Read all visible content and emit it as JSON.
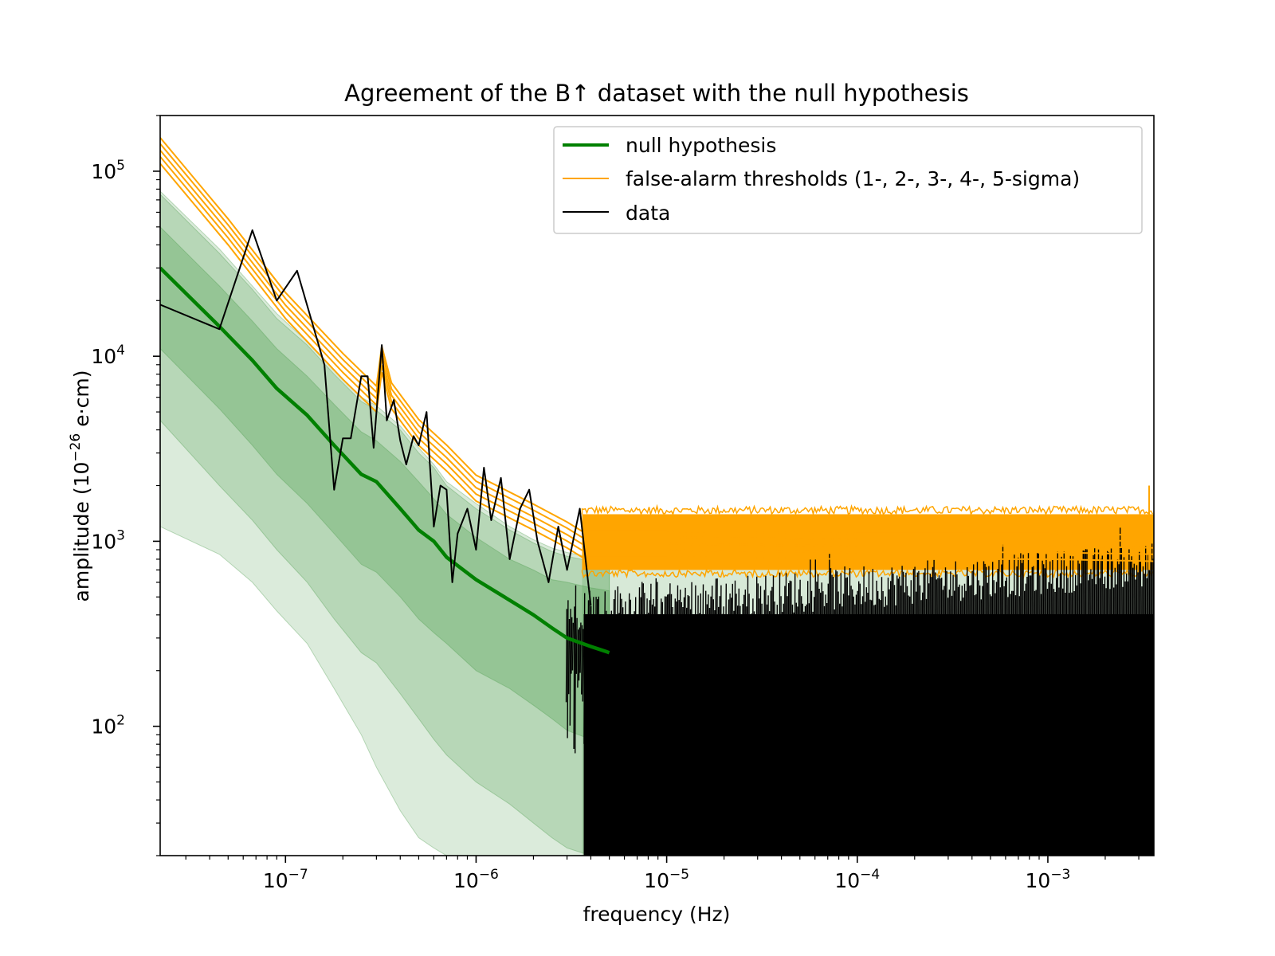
{
  "chart_data": {
    "type": "line",
    "title": "Agreement of the B↑ dataset with the null hypothesis",
    "xlabel": "frequency (Hz)",
    "ylabel": {
      "prefix": "amplitude (10",
      "exp": "−26",
      "suffix": "e·cm)"
    },
    "xscale": "log",
    "yscale": "log",
    "xlim": [
      2.2e-08,
      0.0036
    ],
    "ylim": [
      20,
      200000
    ],
    "grid": false,
    "legend_position": "top-right",
    "x_ticks": [
      {
        "value": 1e-07,
        "base": "10",
        "exp": "−7"
      },
      {
        "value": 1e-06,
        "base": "10",
        "exp": "−6"
      },
      {
        "value": 1e-05,
        "base": "10",
        "exp": "−5"
      },
      {
        "value": 0.0001,
        "base": "10",
        "exp": "−4"
      },
      {
        "value": 0.001,
        "base": "10",
        "exp": "−3"
      }
    ],
    "y_ticks": [
      {
        "value": 100,
        "base": "10",
        "exp": "2"
      },
      {
        "value": 1000,
        "base": "10",
        "exp": "3"
      },
      {
        "value": 10000,
        "base": "10",
        "exp": "4"
      },
      {
        "value": 100000,
        "base": "10",
        "exp": "5"
      }
    ],
    "legend": [
      {
        "label": "null hypothesis",
        "color": "#008000",
        "width": 4
      },
      {
        "label": "false-alarm thresholds (1-, 2-, 3-, 4-, 5-sigma)",
        "color": "#ffa500",
        "width": 2
      },
      {
        "label": "data",
        "color": "#000000",
        "width": 2
      }
    ],
    "series": [
      {
        "name": "null hypothesis",
        "color": "#008000",
        "x": [
          2.2e-08,
          4.5e-08,
          6.7e-08,
          9e-08,
          1.3e-07,
          1.8e-07,
          2.5e-07,
          3e-07,
          4e-07,
          5e-07,
          6e-07,
          7e-07,
          1e-06,
          1.5e-06,
          2e-06,
          2.5e-06,
          3e-06,
          4e-06,
          5e-06
        ],
        "y": [
          30000,
          14500,
          9500,
          6700,
          4800,
          3300,
          2300,
          2100,
          1500,
          1150,
          1000,
          820,
          620,
          480,
          400,
          340,
          300,
          270,
          250
        ]
      },
      {
        "name": "false-alarm thresholds (1-, 2-, 3-, 4-, 5-sigma)",
        "color": "#ffa500",
        "sigma_ratios": [
          1.0,
          1.09,
          1.18,
          1.28,
          1.38
        ],
        "x": [
          2.2e-08,
          5e-08,
          1e-07,
          2e-07,
          3e-07,
          3.2e-07,
          3.6e-07,
          5e-07,
          7e-07,
          1e-06,
          2e-06,
          3e-06,
          3.6e-06,
          1e-05,
          0.0001,
          0.001,
          0.0036
        ],
        "y": [
          110000,
          40000,
          16000,
          7500,
          5000,
          8200,
          5200,
          3300,
          2400,
          1650,
          1150,
          920,
          820,
          820,
          800,
          800,
          780
        ]
      },
      {
        "name": "data",
        "color": "#000000",
        "x": [
          2.2e-08,
          4.5e-08,
          6.7e-08,
          9e-08,
          1.15e-07,
          1.6e-07,
          1.8e-07,
          2e-07,
          2.2e-07,
          2.5e-07,
          2.7e-07,
          2.9e-07,
          3.2e-07,
          3.4e-07,
          3.7e-07,
          4e-07,
          4.3e-07,
          4.7e-07,
          5e-07,
          5.5e-07,
          6e-07,
          6.5e-07,
          7e-07,
          7.5e-07,
          8e-07,
          9e-07,
          1e-06,
          1.1e-06,
          1.2e-06,
          1.35e-06,
          1.5e-06,
          1.7e-06,
          1.9e-06,
          2.1e-06,
          2.4e-06,
          2.7e-06,
          3e-06,
          3.5e-06,
          4e-06
        ],
        "y": [
          19000,
          14000,
          48000,
          20000,
          29000,
          9000,
          1900,
          3600,
          3600,
          7800,
          7800,
          3200,
          11500,
          4500,
          5800,
          3500,
          2600,
          3700,
          3300,
          5000,
          1200,
          2000,
          1900,
          600,
          1100,
          1500,
          900,
          2500,
          1300,
          2200,
          800,
          1500,
          1900,
          1000,
          600,
          1200,
          700,
          1500,
          450
        ]
      }
    ],
    "noise_floor": {
      "x_range": [
        3.6e-06,
        0.0036
      ],
      "threshold_band": [
        700,
        1400
      ],
      "data_max": 600,
      "spike": {
        "x": 0.0034,
        "y": 2000
      }
    },
    "bands": [
      {
        "name": "1-sigma",
        "color": "#4a9c4a",
        "opacity": 0.3,
        "upper": [
          50000,
          24000,
          15500,
          11000,
          7800,
          5500,
          3900,
          3500,
          2700,
          2100,
          1700,
          1400,
          1050,
          800,
          700,
          620,
          600,
          560,
          540
        ],
        "lower": [
          11000,
          5200,
          3300,
          2300,
          1600,
          1100,
          750,
          680,
          500,
          380,
          320,
          280,
          200,
          160,
          130,
          110,
          95,
          85,
          80
        ]
      },
      {
        "name": "2-sigma",
        "color": "#4a9c4a",
        "opacity": 0.25,
        "upper": [
          75000,
          36000,
          23000,
          16000,
          11500,
          8000,
          5700,
          5100,
          4000,
          3000,
          2500,
          2000,
          1500,
          1150,
          980,
          880,
          830,
          780,
          760
        ],
        "lower": [
          4500,
          2000,
          1300,
          900,
          600,
          380,
          250,
          220,
          150,
          110,
          85,
          70,
          50,
          38,
          30,
          25,
          22,
          20,
          20
        ]
      },
      {
        "name": "3-sigma",
        "color": "#4a9c4a",
        "opacity": 0.2,
        "upper": [
          78000,
          38000,
          24000,
          17000,
          12000,
          8400,
          6000,
          5400,
          4200,
          3200,
          2600,
          2100,
          1600,
          1200,
          1020,
          920,
          870,
          820,
          800
        ],
        "lower": [
          1200,
          850,
          600,
          420,
          280,
          160,
          90,
          60,
          35,
          25,
          22,
          20,
          20,
          20,
          20,
          20,
          20,
          20,
          20
        ]
      }
    ]
  }
}
